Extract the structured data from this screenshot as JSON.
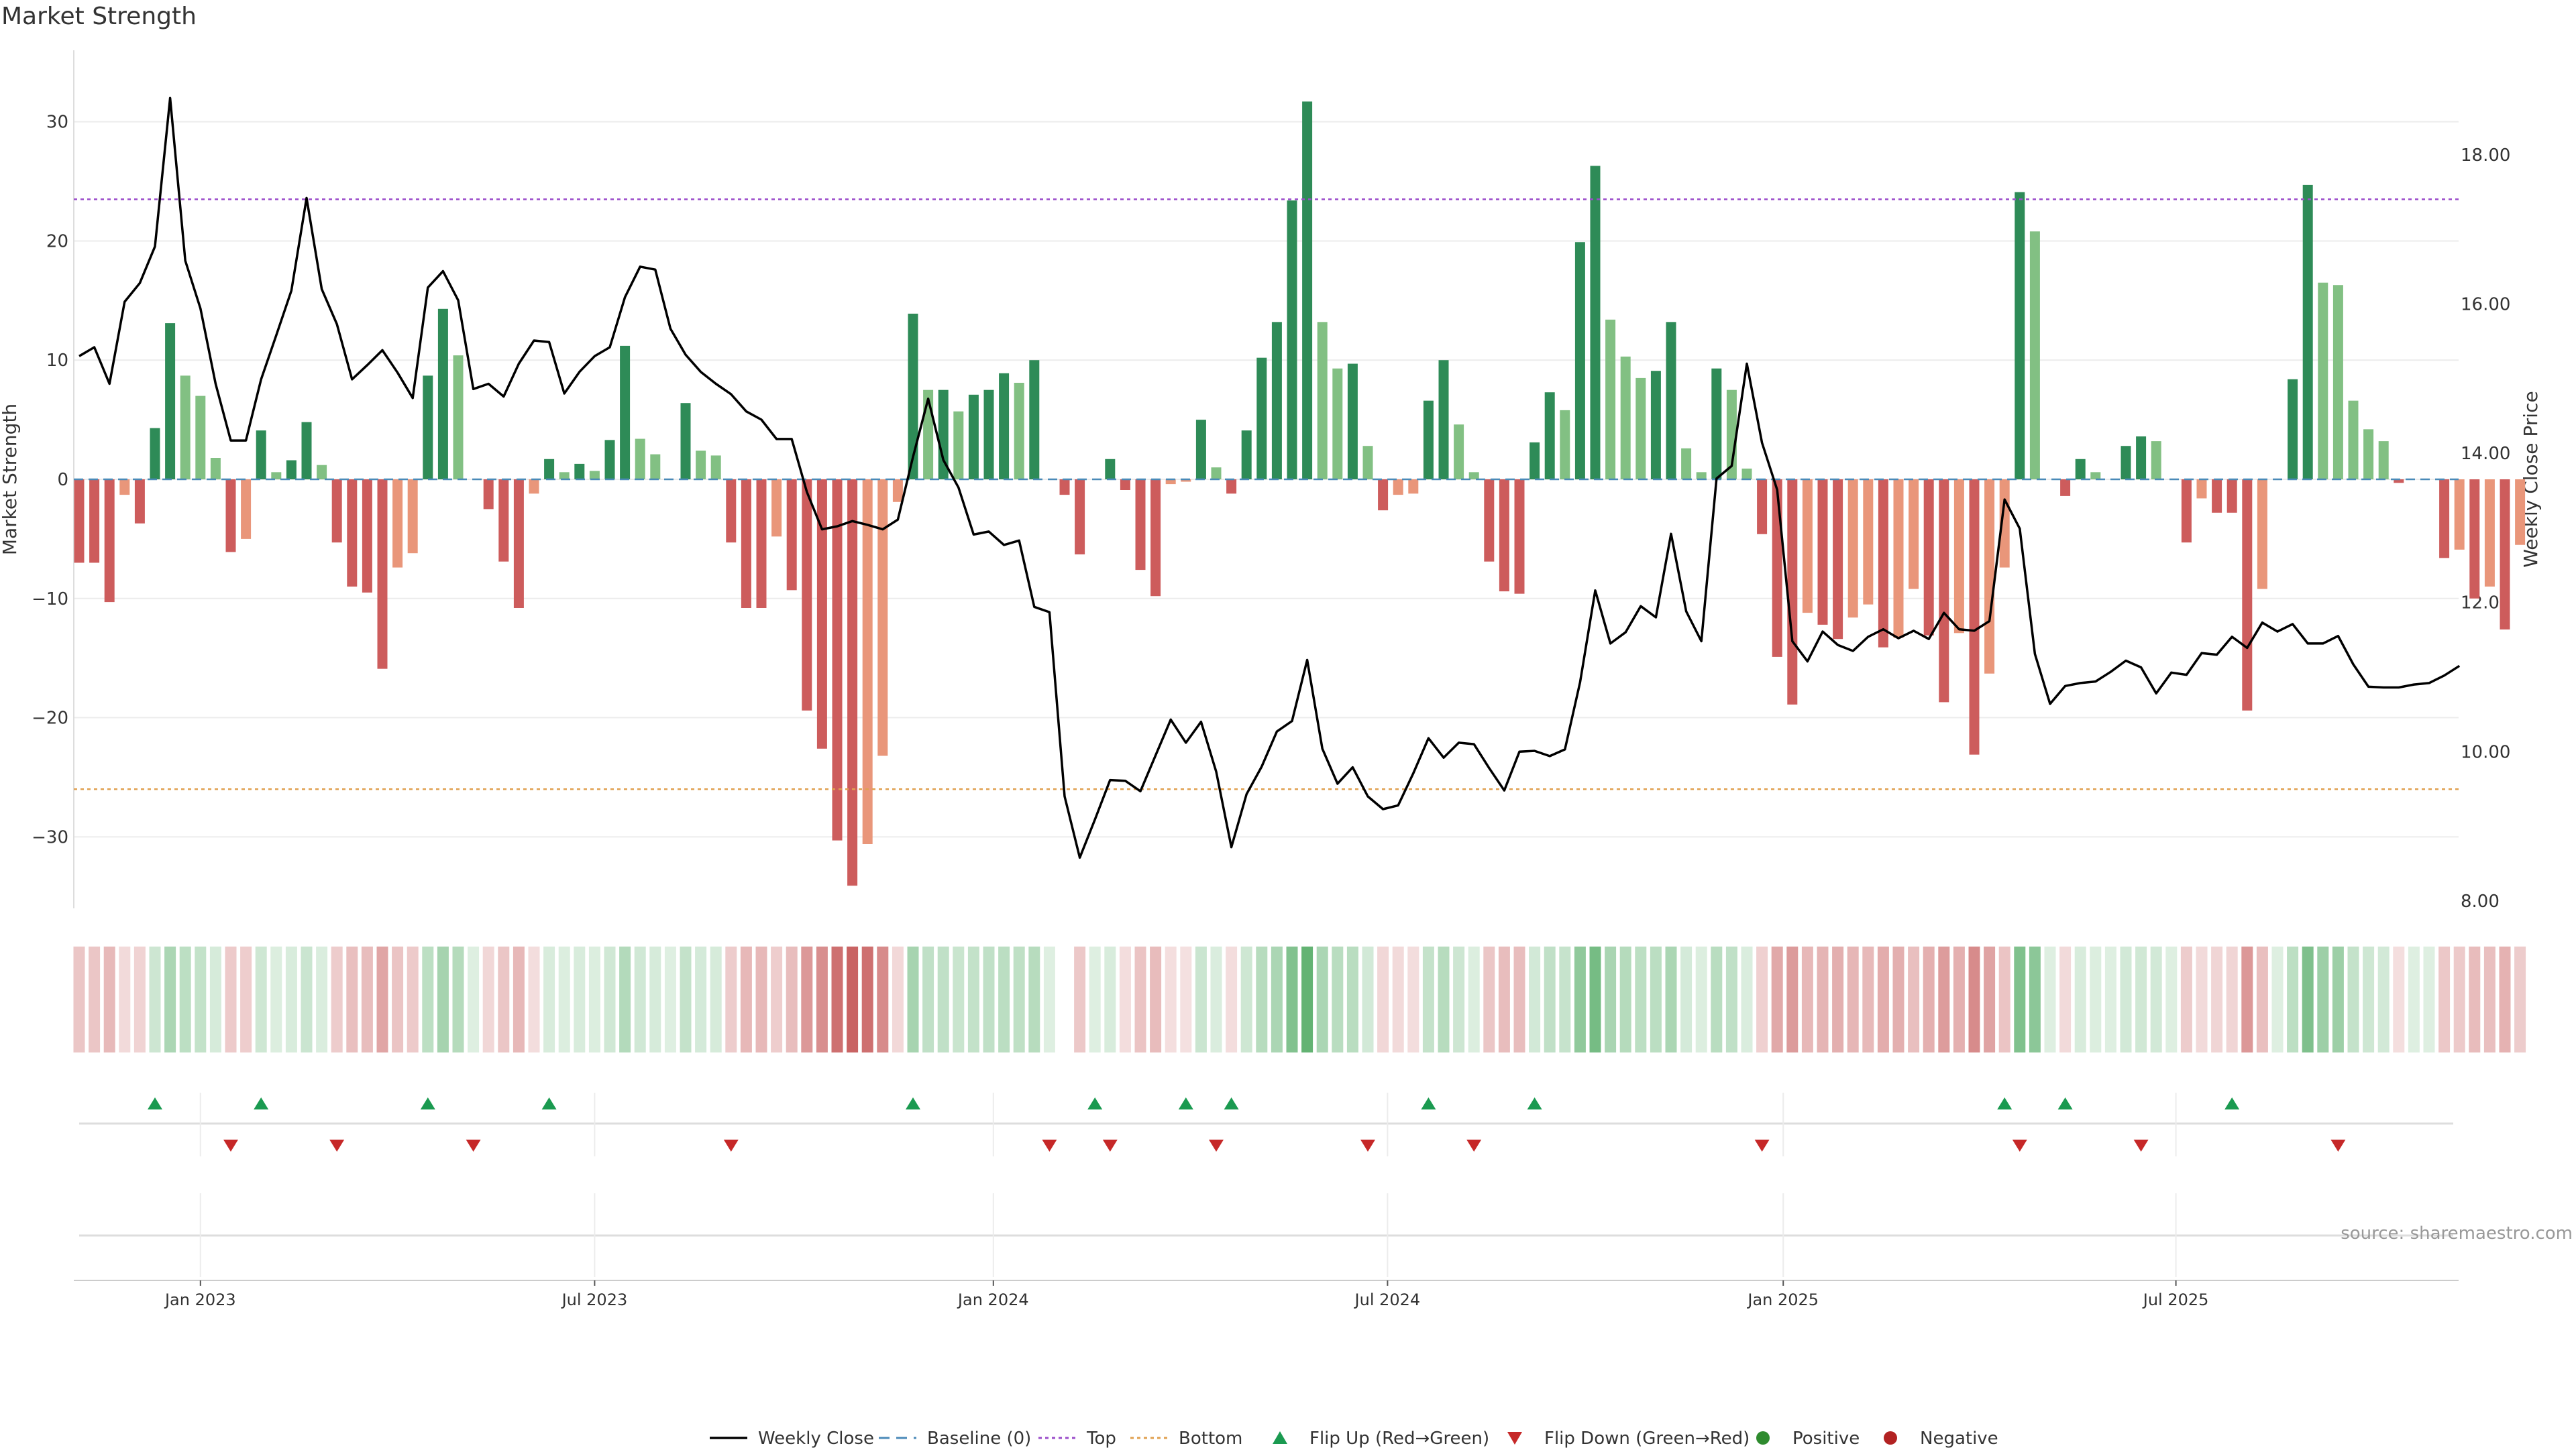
{
  "title": "Market Strength",
  "source": "source: sharemaestro.com",
  "colors": {
    "strong_green": "#2e8b57",
    "light_green": "#82c083",
    "strong_red": "#cd5c5c",
    "light_red": "#e9967a",
    "price_line": "#000000",
    "top_line": "#9b4dca",
    "bottom_line": "#e0a050",
    "baseline": "#4a8ab8",
    "flip_up": "#1a9a50",
    "flip_down": "#c62828",
    "positive": "#2e8b2e",
    "negative": "#b22222"
  },
  "legend": [
    {
      "key": "price",
      "label": "Weekly Close"
    },
    {
      "key": "baseline",
      "label": "Baseline (0)"
    },
    {
      "key": "top",
      "label": "Top"
    },
    {
      "key": "bottom",
      "label": "Bottom"
    },
    {
      "key": "flip_up",
      "label": "Flip Up (Red→Green)"
    },
    {
      "key": "flip_down",
      "label": "Flip Down (Green→Red)"
    },
    {
      "key": "positive",
      "label": "Positive"
    },
    {
      "key": "negative",
      "label": "Negative"
    }
  ],
  "chart_data": {
    "type": "bar",
    "title": "Market Strength",
    "ylabel": "Market Strength",
    "y2label": "Weekly Close Price",
    "ylim": [
      -36,
      36
    ],
    "y2lim": [
      7.9,
      19.4
    ],
    "yticks": [
      -30,
      -20,
      -10,
      0,
      10,
      20,
      30
    ],
    "y2ticks": [
      8,
      10,
      12,
      14,
      16,
      18
    ],
    "y2ticklabels": [
      "8.00",
      "10.00",
      "12.00",
      "14.00",
      "16.00",
      "18.00"
    ],
    "xticks": [
      {
        "label": "Jan 2023",
        "week": 8
      },
      {
        "label": "Jul 2023",
        "week": 34
      },
      {
        "label": "Jan 2024",
        "week": 60.3
      },
      {
        "label": "Jul 2024",
        "week": 86.3
      },
      {
        "label": "Jan 2025",
        "week": 112.4
      },
      {
        "label": "Jul 2025",
        "week": 138.3
      }
    ],
    "top_line": 23.5,
    "bottom_line": -26,
    "baseline": 0,
    "grid": true,
    "legend_position": "bottom",
    "strength": [
      -7,
      -7,
      -10.3,
      -1.3,
      -3.7,
      4.3,
      13.1,
      8.7,
      7,
      1.8,
      -6.1,
      -5,
      4.1,
      0.6,
      1.6,
      4.8,
      1.2,
      -5.3,
      -9,
      -9.5,
      -15.9,
      -7.4,
      -6.2,
      8.7,
      14.3,
      10.4,
      0,
      -2.5,
      -6.9,
      -10.8,
      -1.2,
      1.7,
      0.6,
      1.3,
      0.7,
      3.3,
      11.2,
      3.4,
      2.1,
      0,
      6.4,
      2.4,
      2,
      -5.3,
      -10.8,
      -10.8,
      -4.8,
      -9.3,
      -19.4,
      -22.6,
      -30.3,
      -34.1,
      -30.6,
      -23.2,
      -1.9,
      13.9,
      7.5,
      7.5,
      5.7,
      7.1,
      7.5,
      8.9,
      8.1,
      10,
      0,
      -1.3,
      -6.3,
      0,
      1.7,
      -0.9,
      -7.6,
      -9.8,
      -0.4,
      -0.2,
      5,
      1,
      -1.2,
      4.1,
      10.2,
      13.2,
      23.4,
      31.7,
      13.2,
      9.3,
      9.7,
      2.8,
      -2.6,
      -1.3,
      -1.2,
      6.6,
      10,
      4.6,
      0.6,
      -6.9,
      -9.4,
      -9.6,
      3.1,
      7.3,
      5.8,
      19.9,
      26.3,
      13.4,
      10.3,
      8.5,
      9.1,
      13.2,
      2.6,
      0.6,
      9.3,
      7.5,
      0.9,
      -4.6,
      -14.9,
      -18.9,
      -11.2,
      -12.2,
      -13.4,
      -11.6,
      -10.5,
      -14.1,
      -13.3,
      -9.2,
      -13.1,
      -18.7,
      -12.9,
      -23.1,
      -16.3,
      -7.4,
      24.1,
      20.8,
      0,
      -1.4,
      1.7,
      0.6,
      0,
      2.8,
      3.6,
      3.2,
      0,
      -5.3,
      -1.6,
      -2.8,
      -2.8,
      -19.4,
      -9.2,
      0,
      8.4,
      24.7,
      16.5,
      16.3,
      6.6,
      4.2,
      3.2,
      -0.3,
      0,
      0,
      -6.6,
      -5.9,
      -10,
      -9,
      -12.6,
      -5.5
    ],
    "close": [
      15.3,
      15.42,
      14.93,
      16.03,
      16.28,
      16.77,
      18.76,
      16.58,
      15.94,
      14.93,
      14.17,
      14.17,
      14.99,
      15.58,
      16.18,
      17.42,
      16.2,
      15.73,
      14.99,
      15.18,
      15.38,
      15.08,
      14.74,
      16.22,
      16.44,
      16.05,
      14.86,
      14.93,
      14.76,
      15.2,
      15.51,
      15.49,
      14.8,
      15.09,
      15.3,
      15.42,
      16.09,
      16.5,
      16.46,
      15.67,
      15.32,
      15.09,
      14.93,
      14.79,
      14.56,
      14.45,
      14.19,
      14.19,
      13.48,
      12.98,
      13.02,
      13.09,
      13.04,
      12.98,
      13.11,
      13.95,
      14.73,
      13.91,
      13.54,
      12.91,
      12.95,
      12.77,
      12.83,
      11.94,
      11.87,
      9.4,
      8.58,
      9.09,
      9.62,
      9.61,
      9.47,
      9.95,
      10.43,
      10.12,
      10.4,
      9.73,
      8.72,
      9.43,
      9.8,
      10.27,
      10.41,
      11.23,
      10.04,
      9.57,
      9.79,
      9.4,
      9.23,
      9.28,
      9.71,
      10.18,
      9.92,
      10.12,
      10.1,
      9.78,
      9.48,
      10,
      10.01,
      9.94,
      10.03,
      10.93,
      12.16,
      11.45,
      11.6,
      11.95,
      11.8,
      12.92,
      11.88,
      11.48,
      13.66,
      13.83,
      15.2,
      14.14,
      13.51,
      11.48,
      11.21,
      11.61,
      11.43,
      11.35,
      11.54,
      11.64,
      11.52,
      11.62,
      11.51,
      11.86,
      11.64,
      11.62,
      11.75,
      13.38,
      12.99,
      11.31,
      10.64,
      10.88,
      10.92,
      10.94,
      11.07,
      11.22,
      11.13,
      10.78,
      11.06,
      11.03,
      11.32,
      11.3,
      11.54,
      11.39,
      11.73,
      11.61,
      11.71,
      11.45,
      11.45,
      11.55,
      11.17,
      10.87,
      10.86,
      10.86,
      10.9,
      10.92,
      11.02,
      11.15
    ]
  },
  "heat_strip": {
    "gap_after": 65
  },
  "flips": {
    "up": [
      5,
      12,
      23,
      31,
      55,
      67,
      73,
      76,
      89,
      96,
      127,
      131,
      142
    ],
    "down": [
      10,
      17,
      26,
      43,
      64,
      68,
      75,
      85,
      92,
      111,
      128,
      136,
      149
    ]
  }
}
